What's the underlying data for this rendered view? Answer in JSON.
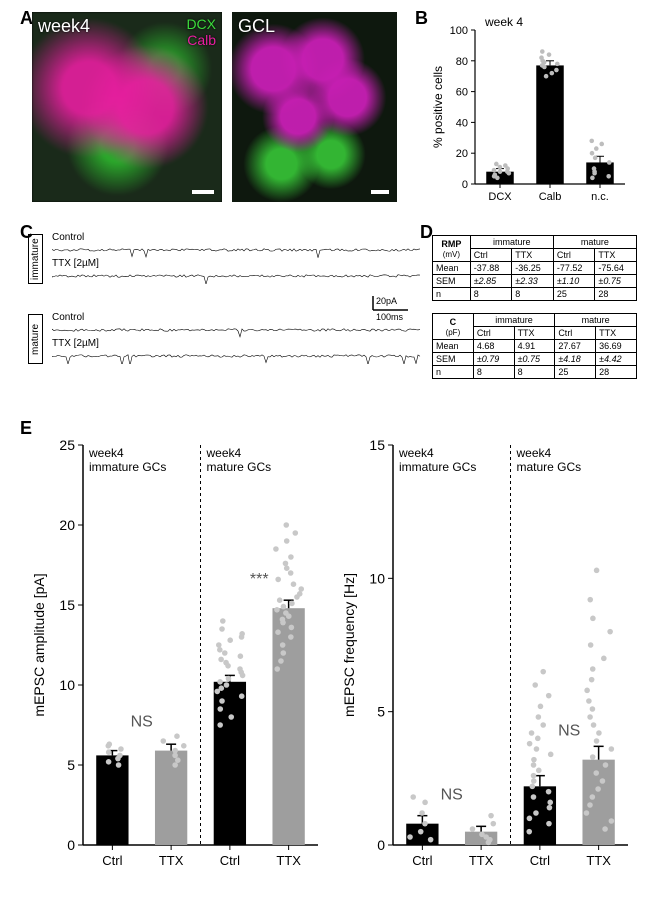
{
  "panelA": {
    "label": "A",
    "img1_overlay_left": "week4",
    "img1_overlay_dcx": "DCX",
    "img1_overlay_calb": "Calb",
    "img2_overlay": "GCL",
    "dcx_color": "#3cdc3c",
    "calb_color": "#e81ea0"
  },
  "panelB": {
    "label": "B",
    "title": "week 4",
    "ylabel": "% positive cells",
    "ylim": [
      0,
      100
    ],
    "ytick_step": 20,
    "categories": [
      "DCX",
      "Calb",
      "n.c."
    ],
    "values": [
      8,
      77,
      14
    ],
    "errors": [
      2,
      3,
      4
    ],
    "bar_colors": [
      "#000000",
      "#000000",
      "#000000"
    ],
    "scatter": {
      "DCX": [
        4,
        5,
        6,
        7,
        8,
        8,
        9,
        10,
        11,
        12,
        13
      ],
      "Calb": [
        70,
        72,
        74,
        76,
        77,
        78,
        79,
        80,
        82,
        84,
        86
      ],
      "n.c.": [
        4,
        5,
        7,
        8,
        10,
        14,
        17,
        20,
        23,
        26,
        28
      ]
    },
    "scatter_color": "#bdbdbd",
    "axis_fontsize": 11,
    "title_fontsize": 12
  },
  "panelC": {
    "label": "C",
    "groups": [
      {
        "name": "immature",
        "traces": [
          {
            "label": "Control"
          },
          {
            "label": "TTX [2µM]"
          }
        ]
      },
      {
        "name": "mature",
        "traces": [
          {
            "label": "Control"
          },
          {
            "label": "TTX [2µM]"
          }
        ]
      }
    ],
    "scale_y": "20pA",
    "scale_x": "100ms"
  },
  "panelD": {
    "label": "D",
    "tables": [
      {
        "title": "RMP",
        "unit": "(mV)",
        "cols": [
          "immature",
          "mature"
        ],
        "subcols": [
          "Ctrl",
          "TTX",
          "Ctrl",
          "TTX"
        ],
        "rows": [
          {
            "h": "Mean",
            "v": [
              "-37.88",
              "-36.25",
              "-77.52",
              "-75.64"
            ]
          },
          {
            "h": "SEM",
            "v": [
              "±2.85",
              "±2.33",
              "±1.10",
              "±0.75"
            ],
            "italic": true
          },
          {
            "h": "n",
            "v": [
              "8",
              "8",
              "25",
              "28"
            ]
          }
        ]
      },
      {
        "title": "C",
        "unit": "(pF)",
        "cols": [
          "immature",
          "mature"
        ],
        "subcols": [
          "Ctrl",
          "TTX",
          "Ctrl",
          "TTX"
        ],
        "rows": [
          {
            "h": "Mean",
            "v": [
              "4.68",
              "4.91",
              "27.67",
              "36.69"
            ]
          },
          {
            "h": "SEM",
            "v": [
              "±0.79",
              "±0.75",
              "±4.18",
              "±4.42"
            ],
            "italic": true
          },
          {
            "h": "n",
            "v": [
              "8",
              "8",
              "25",
              "28"
            ]
          }
        ]
      }
    ]
  },
  "panelE": {
    "label": "E",
    "charts": [
      {
        "ylabel": "mEPSC amplitude [pA]",
        "ylim": [
          0,
          25
        ],
        "ytick_step": 5,
        "groups": [
          {
            "title1": "week4",
            "title2": "immature GCs",
            "sig": "NS",
            "sig_color": "#555",
            "bars": [
              {
                "x": "Ctrl",
                "v": 5.6,
                "e": 0.3,
                "color": "#000000",
                "scatter": [
                  5.0,
                  5.2,
                  5.4,
                  5.6,
                  5.8,
                  6.0,
                  6.2,
                  6.3
                ]
              },
              {
                "x": "TTX",
                "v": 5.9,
                "e": 0.4,
                "color": "#9e9e9e",
                "scatter": [
                  5.0,
                  5.3,
                  5.6,
                  5.9,
                  6.2,
                  6.5,
                  6.8
                ]
              }
            ]
          },
          {
            "title1": "week4",
            "title2": "mature GCs",
            "sig": "***",
            "sig_color": "#555",
            "bars": [
              {
                "x": "Ctrl",
                "v": 10.2,
                "e": 0.4,
                "color": "#000000",
                "scatter": [
                  7.5,
                  8,
                  8.5,
                  9,
                  9.3,
                  9.6,
                  9.8,
                  10,
                  10.2,
                  10.4,
                  10.6,
                  10.8,
                  11,
                  11.2,
                  11.4,
                  11.6,
                  11.8,
                  12,
                  12.2,
                  12.5,
                  12.8,
                  13,
                  13.2,
                  13.5,
                  14
                ]
              },
              {
                "x": "TTX",
                "v": 14.8,
                "e": 0.5,
                "color": "#9e9e9e",
                "scatter": [
                  11,
                  11.5,
                  12,
                  12.5,
                  13,
                  13.3,
                  13.6,
                  13.9,
                  14.1,
                  14.3,
                  14.5,
                  14.7,
                  14.9,
                  15.1,
                  15.3,
                  15.5,
                  15.7,
                  16,
                  16.3,
                  16.6,
                  17,
                  17.3,
                  17.6,
                  18,
                  18.5,
                  19,
                  19.5,
                  20
                ]
              }
            ]
          }
        ]
      },
      {
        "ylabel": "mEPSC frequency [Hz]",
        "ylim": [
          0,
          15
        ],
        "ytick_step": 5,
        "groups": [
          {
            "title1": "week4",
            "title2": "immature GCs",
            "sig": "NS",
            "sig_color": "#555",
            "bars": [
              {
                "x": "Ctrl",
                "v": 0.8,
                "e": 0.3,
                "color": "#000000",
                "scatter": [
                  0.2,
                  0.3,
                  0.5,
                  0.8,
                  1.2,
                  1.6,
                  1.8
                ]
              },
              {
                "x": "TTX",
                "v": 0.5,
                "e": 0.2,
                "color": "#9e9e9e",
                "scatter": [
                  0.1,
                  0.2,
                  0.3,
                  0.4,
                  0.6,
                  0.8,
                  1.1
                ]
              }
            ]
          },
          {
            "title1": "week4",
            "title2": "mature GCs",
            "sig": "NS",
            "sig_color": "#555",
            "bars": [
              {
                "x": "Ctrl",
                "v": 2.2,
                "e": 0.4,
                "color": "#000000",
                "scatter": [
                  0.5,
                  0.8,
                  1.0,
                  1.2,
                  1.4,
                  1.6,
                  1.8,
                  2.0,
                  2.2,
                  2.4,
                  2.6,
                  2.8,
                  3.0,
                  3.2,
                  3.4,
                  3.6,
                  3.8,
                  4.0,
                  4.2,
                  4.5,
                  4.8,
                  5.2,
                  5.6,
                  6.0,
                  6.5
                ]
              },
              {
                "x": "TTX",
                "v": 3.2,
                "e": 0.5,
                "color": "#9e9e9e",
                "scatter": [
                  0.6,
                  0.9,
                  1.2,
                  1.5,
                  1.8,
                  2.1,
                  2.4,
                  2.7,
                  3.0,
                  3.3,
                  3.6,
                  3.9,
                  4.2,
                  4.5,
                  4.8,
                  5.1,
                  5.4,
                  5.8,
                  6.2,
                  6.6,
                  7.0,
                  7.5,
                  8.0,
                  8.5,
                  9.2,
                  10.3
                ]
              }
            ]
          }
        ]
      }
    ],
    "scatter_color": "#c8c8c8",
    "axis_fontsize": 14
  }
}
